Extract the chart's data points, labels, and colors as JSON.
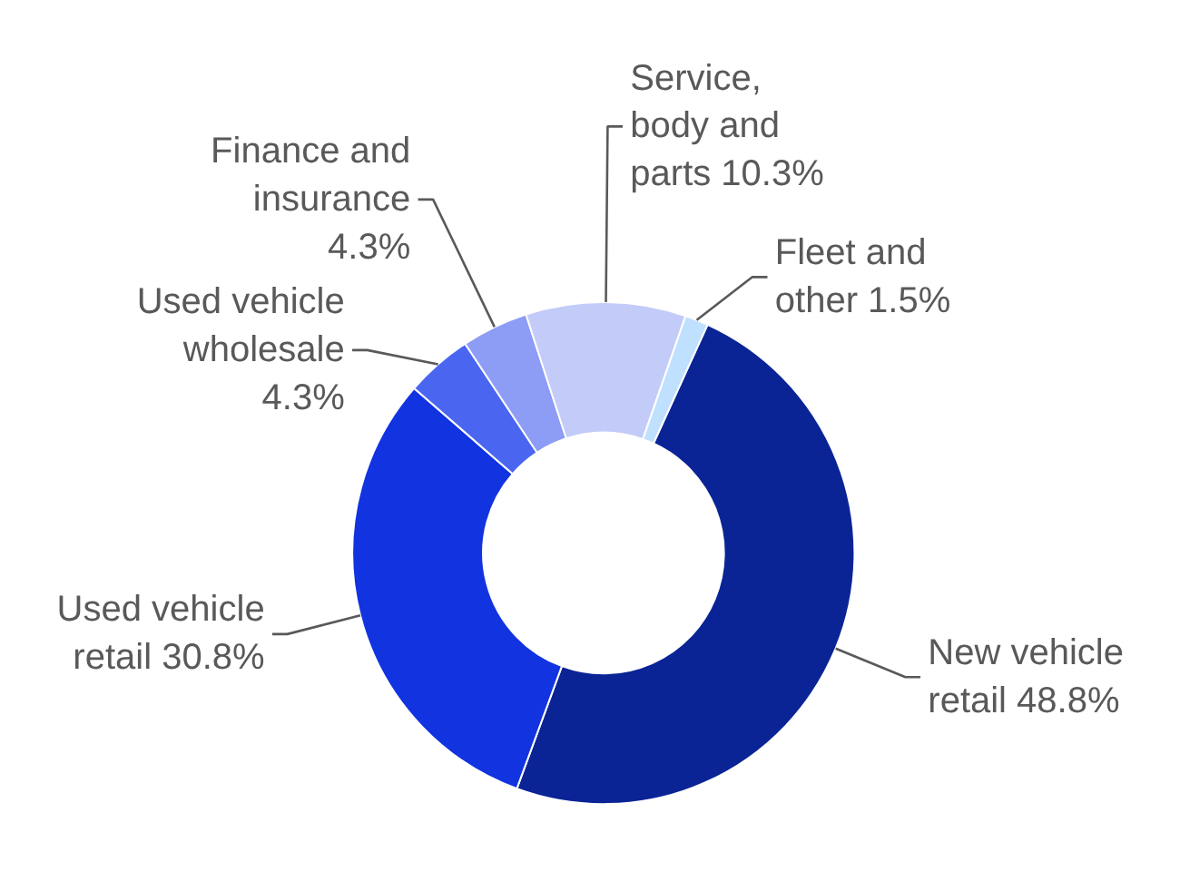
{
  "chart_data": {
    "type": "donut",
    "categories": [
      "New vehicle retail",
      "Used vehicle retail",
      "Used vehicle wholesale",
      "Finance and insurance",
      "Service, body and parts",
      "Fleet and other"
    ],
    "values": [
      48.8,
      30.8,
      4.3,
      4.3,
      10.3,
      1.5
    ],
    "colors": [
      "#0a2496",
      "#1233e0",
      "#4a66f0",
      "#8d9cf5",
      "#c3cbf8",
      "#bfe0ff"
    ],
    "value_labels": [
      "48.8%",
      "30.8%",
      "4.3%",
      "4.3%",
      "10.3%",
      "1.5%"
    ]
  }
}
